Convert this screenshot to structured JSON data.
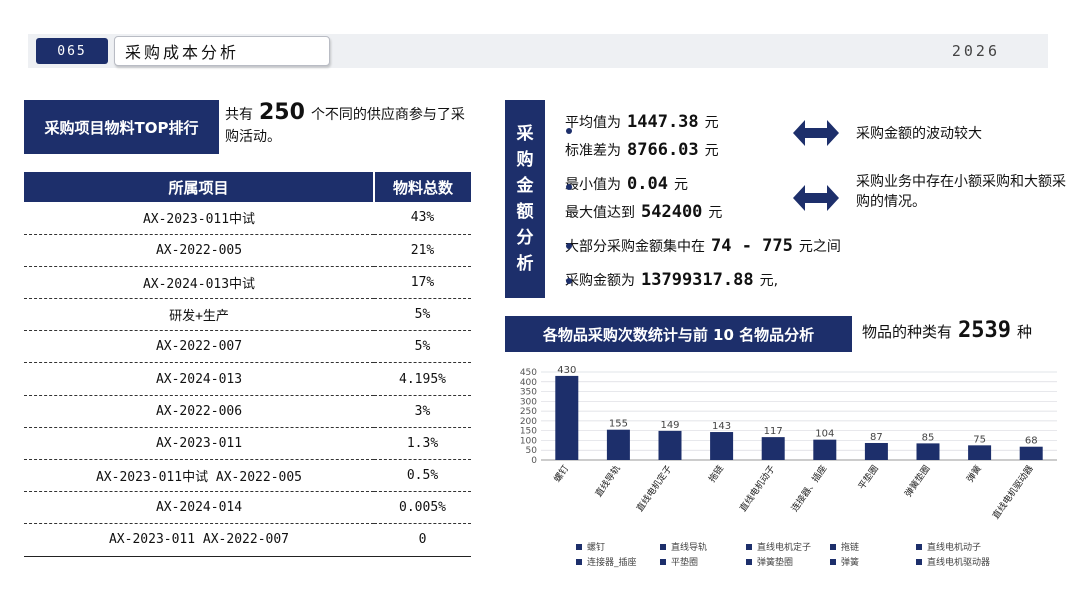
{
  "header": {
    "number": "065",
    "title": "采购成本分析",
    "year": "2026"
  },
  "left": {
    "label": "采购项目物料TOP排行",
    "supplier_prefix": "共有",
    "supplier_count": "250",
    "supplier_suffix": "个不同的供应商参与了采购活动。",
    "table": {
      "headers": [
        "所属项目",
        "物料总数"
      ],
      "rows": [
        [
          "AX-2023-011中试",
          "43%"
        ],
        [
          "AX-2022-005",
          "21%"
        ],
        [
          "AX-2024-013中试",
          "17%"
        ],
        [
          "研发+生产",
          "5%"
        ],
        [
          "AX-2022-007",
          "5%"
        ],
        [
          "AX-2024-013",
          "4.195%"
        ],
        [
          "AX-2022-006",
          "3%"
        ],
        [
          "AX-2023-011",
          "1.3%"
        ],
        [
          "AX-2023-011中试  AX-2022-005",
          "0.5%"
        ],
        [
          "AX-2024-014",
          "0.005%"
        ],
        [
          "AX-2023-011  AX-2022-007",
          "0"
        ]
      ]
    }
  },
  "right": {
    "label_chars": [
      "采",
      "购",
      "金",
      "额",
      "分",
      "析"
    ],
    "stats": {
      "avg_label": "平均值为",
      "avg_value": "1447.38",
      "avg_unit": "元",
      "std_label": "标准差为",
      "std_value": "8766.03",
      "std_unit": "元",
      "min_label": "最小值为",
      "min_value": "0.04",
      "min_unit": "元",
      "max_label": "最大值达到",
      "max_value": "542400",
      "max_unit": "元",
      "range_label": "大部分采购金额集中在",
      "range_value": "74 - 775",
      "range_unit": "元之间",
      "total_label": "采购金额为",
      "total_value": "13799317.88",
      "total_unit": "元,"
    },
    "notes": {
      "note1": "采购金额的波动较大",
      "note2": "采购业务中存在小额采购和大额采购的情况。"
    },
    "chart_label": "各物品采购次数统计与前 10 名物品分析",
    "kinds_prefix": "物品的种类有",
    "kinds_count": "2539",
    "kinds_suffix": "种"
  },
  "colors": {
    "primary": "#1d2f6b",
    "header_bg": "#eef0f3"
  },
  "icons": {
    "arrow": "double-arrow-icon"
  },
  "chart_data": {
    "type": "bar",
    "categories": [
      "螺钉",
      "直线导轨",
      "直线电机定子",
      "拖链",
      "直线电机动子",
      "连接器、插座",
      "平垫圈",
      "弹簧垫圈",
      "弹簧",
      "直线电机驱动器"
    ],
    "values": [
      430,
      155,
      149,
      143,
      117,
      104,
      87,
      85,
      75,
      68
    ],
    "ylim": [
      0,
      450
    ],
    "yticks": [
      0,
      50,
      100,
      150,
      200,
      250,
      300,
      350,
      400,
      450
    ],
    "legend": [
      "螺钉",
      "直线导轨",
      "直线电机定子",
      "拖链",
      "直线电机动子",
      "连接器_插座",
      "平垫圈",
      "弹簧垫圈",
      "弹簧",
      "直线电机驱动器"
    ],
    "grid": true,
    "legend_position": "bottom",
    "color": "#1d2f6b"
  }
}
